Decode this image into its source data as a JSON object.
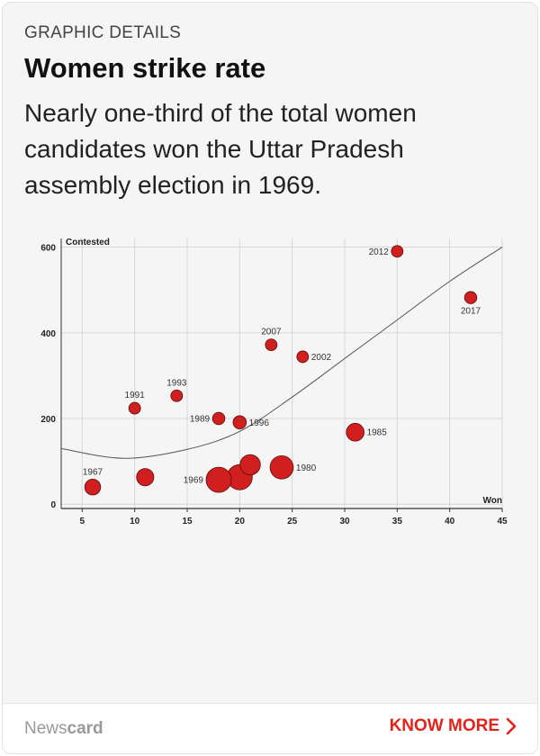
{
  "header": {
    "kicker": "GRAPHIC DETAILS",
    "title": "Women strike rate",
    "subtitle": "Nearly one-third of the total women candidates won the Uttar Pradesh assembly election in 1969."
  },
  "footer": {
    "brand_light": "News",
    "brand_bold": "card",
    "cta_label": "KNOW MORE",
    "cta_icon": "chevron-right-icon",
    "accent_color": "#e2231a"
  },
  "chart_data": {
    "type": "scatter",
    "title": "",
    "xlabel": "Won",
    "ylabel": "Contested",
    "xlim": [
      3,
      45
    ],
    "ylim": [
      -10,
      620
    ],
    "x_ticks": [
      5,
      10,
      15,
      20,
      25,
      30,
      35,
      40,
      45
    ],
    "y_ticks": [
      0,
      200,
      400,
      600
    ],
    "grid": true,
    "point_color": "#d11f1f",
    "trendline": "curved fit through points",
    "points": [
      {
        "label": "1967",
        "won": 6,
        "contested": 40
      },
      {
        "label": "",
        "won": 11,
        "contested": 63
      },
      {
        "label": "1969",
        "won": 18,
        "contested": 57
      },
      {
        "label": "",
        "won": 20,
        "contested": 63
      },
      {
        "label": "",
        "won": 21,
        "contested": 92
      },
      {
        "label": "1980",
        "won": 24,
        "contested": 86
      },
      {
        "label": "1985",
        "won": 31,
        "contested": 168
      },
      {
        "label": "1989",
        "won": 18,
        "contested": 200
      },
      {
        "label": "1991",
        "won": 10,
        "contested": 224
      },
      {
        "label": "1993",
        "won": 14,
        "contested": 253
      },
      {
        "label": "1996",
        "won": 20,
        "contested": 191
      },
      {
        "label": "2002",
        "won": 26,
        "contested": 344
      },
      {
        "label": "2007",
        "won": 23,
        "contested": 372
      },
      {
        "label": "2012",
        "won": 35,
        "contested": 590
      },
      {
        "label": "2017",
        "won": 42,
        "contested": 482
      }
    ],
    "trend_points": [
      {
        "won": 3,
        "contested": 130
      },
      {
        "won": 9,
        "contested": 107
      },
      {
        "won": 15,
        "contested": 128
      },
      {
        "won": 20,
        "contested": 170
      },
      {
        "won": 25,
        "contested": 250
      },
      {
        "won": 30,
        "contested": 340
      },
      {
        "won": 35,
        "contested": 430
      },
      {
        "won": 40,
        "contested": 520
      },
      {
        "won": 45,
        "contested": 600
      }
    ]
  }
}
